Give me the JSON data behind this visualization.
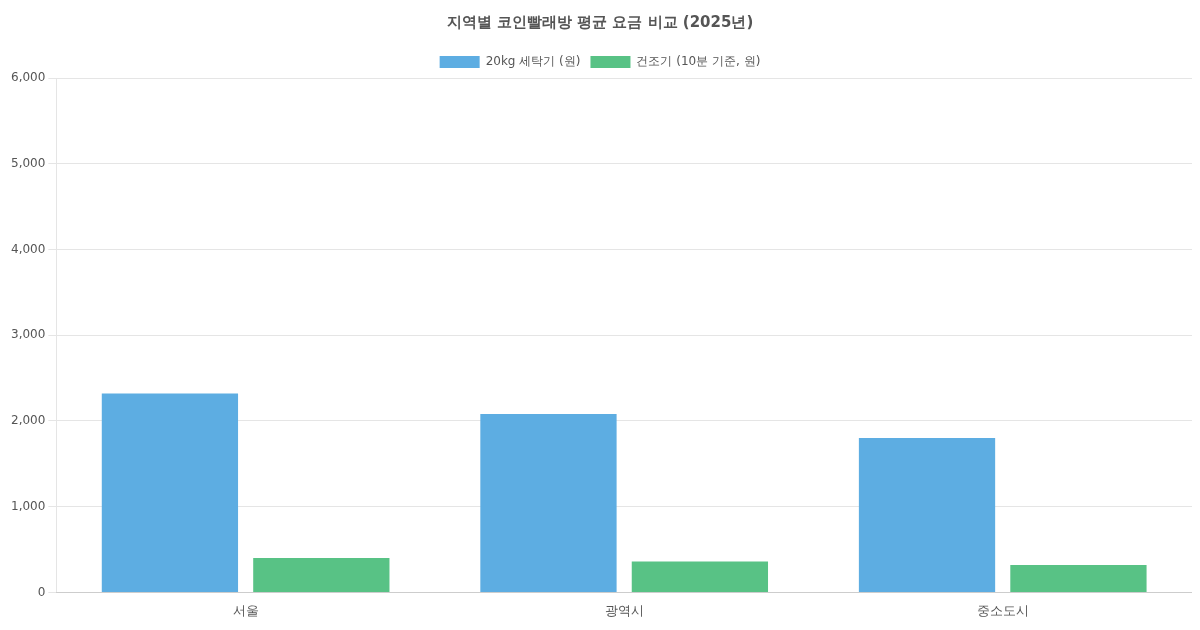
{
  "chart_data": {
    "type": "bar",
    "title": "지역별 코인빨래방 평균 요금 비교 (2025년)",
    "categories": [
      "서울",
      "광역시",
      "중소도시"
    ],
    "series": [
      {
        "name": "20kg 세탁기 (원)",
        "color": "#5dade2",
        "values": [
          2320,
          2080,
          1800
        ]
      },
      {
        "name": "건조기 (10분 기준, 원)",
        "color": "#58c285",
        "values": [
          400,
          360,
          320
        ]
      }
    ],
    "ylim": [
      0,
      6000
    ],
    "yticks": [
      0,
      {
        "value": 1000,
        "label": "1,000"
      },
      {
        "value": 2000,
        "label": "2,000"
      },
      {
        "value": 3000,
        "label": "3,000"
      },
      {
        "value": 4000,
        "label": "4,000"
      },
      {
        "value": 5000,
        "label": "5,000"
      },
      {
        "value": 6000,
        "label": "6,000"
      }
    ],
    "grid": "y",
    "legend": "top"
  }
}
